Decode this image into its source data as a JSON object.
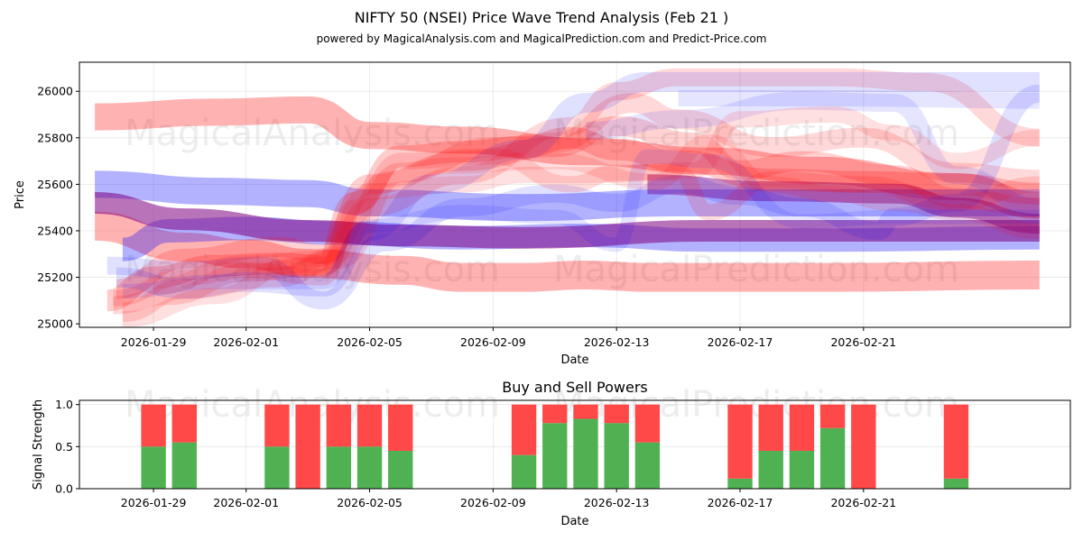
{
  "chart_data": [
    {
      "type": "line",
      "title": "NIFTY 50 (NSEI) Price Wave Trend Analysis (Feb 21 )",
      "subtitle": "powered by MagicalAnalysis.com and MagicalPrediction.com and Predict-Price.com",
      "xlabel": "Date",
      "ylabel": "Price",
      "xticks": [
        "2026-01-29",
        "2026-02-01",
        "2026-02-05",
        "2026-02-09",
        "2026-02-13",
        "2026-02-17",
        "2026-02-21"
      ],
      "yticks": [
        25000,
        25200,
        25400,
        25600,
        25800,
        26000
      ],
      "ylim": [
        24985,
        26125
      ],
      "xlim_days": [
        -2.4,
        29.7
      ],
      "watermarks": [
        "MagicalAnalysis.com",
        "MagicalPrediction.com",
        "MagicalAnalysis.com",
        "MagicalPrediction.com"
      ],
      "grid": true,
      "bands": [
        {
          "color": "#ff0000",
          "alpha": 0.3,
          "width": 30,
          "points": [
            [
              -1.9,
              25890
            ],
            [
              2,
              25910
            ],
            [
              5,
              25920
            ],
            [
              7,
              25810
            ],
            [
              10,
              25790
            ],
            [
              14,
              25740
            ],
            [
              18,
              25700
            ],
            [
              21.5,
              25660
            ],
            [
              26,
              25590
            ],
            [
              28.7,
              25510
            ]
          ]
        },
        {
          "color": "#ff0000",
          "alpha": 0.3,
          "width": 32,
          "points": [
            [
              -1.9,
              25420
            ],
            [
              1,
              25330
            ],
            [
              3,
              25300
            ],
            [
              5,
              25260
            ],
            [
              8,
              25230
            ],
            [
              10,
              25200
            ],
            [
              12,
              25200
            ],
            [
              14,
              25210
            ],
            [
              16,
              25200
            ],
            [
              18,
              25200
            ],
            [
              20,
              25200
            ],
            [
              22,
              25200
            ],
            [
              28.7,
              25210
            ]
          ]
        },
        {
          "color": "#0000ff",
          "alpha": 0.3,
          "width": 30,
          "points": [
            [
              -1.9,
              25600
            ],
            [
              2,
              25570
            ],
            [
              5,
              25560
            ],
            [
              7,
              25520
            ],
            [
              12,
              25500
            ],
            [
              17,
              25520
            ],
            [
              22,
              25520
            ],
            [
              28.7,
              25520
            ]
          ]
        },
        {
          "color": "#0000ff",
          "alpha": 0.3,
          "width": 26,
          "points": [
            [
              -1,
              25320
            ],
            [
              0.5,
              25400
            ],
            [
              3,
              25410
            ],
            [
              6,
              25390
            ],
            [
              10,
              25370
            ],
            [
              14,
              25380
            ],
            [
              18,
              25360
            ],
            [
              22,
              25360
            ],
            [
              28.7,
              25370
            ]
          ]
        },
        {
          "color": "#800080",
          "alpha": 0.55,
          "width": 24,
          "points": [
            [
              -1.9,
              25520
            ],
            [
              1,
              25450
            ],
            [
              5,
              25400
            ],
            [
              8,
              25380
            ],
            [
              12,
              25370
            ],
            [
              18,
              25400
            ],
            [
              24,
              25400
            ],
            [
              28.7,
              25400
            ]
          ]
        },
        {
          "color": "#800080",
          "alpha": 0.45,
          "width": 22,
          "points": [
            [
              16,
              25600
            ],
            [
              20,
              25570
            ],
            [
              24,
              25560
            ],
            [
              26,
              25500
            ],
            [
              28.7,
              25430
            ]
          ]
        },
        {
          "color": "#ff0000",
          "alpha": 0.2,
          "width": 24,
          "points": [
            [
              -1.5,
              25100
            ],
            [
              0,
              25200
            ],
            [
              2,
              25250
            ],
            [
              4,
              25260
            ],
            [
              5.5,
              25250
            ],
            [
              6.5,
              25520
            ],
            [
              8,
              25720
            ],
            [
              10,
              25740
            ],
            [
              12,
              25760
            ],
            [
              13.5,
              25800
            ],
            [
              15,
              25750
            ],
            [
              17,
              25700
            ],
            [
              20,
              25620
            ],
            [
              23,
              25610
            ],
            [
              26,
              25600
            ],
            [
              28.7,
              25560
            ]
          ]
        },
        {
          "color": "#ff0000",
          "alpha": 0.18,
          "width": 22,
          "points": [
            [
              -1.2,
              25150
            ],
            [
              1,
              25280
            ],
            [
              4,
              25330
            ],
            [
              5.5,
              25300
            ],
            [
              7,
              25600
            ],
            [
              10,
              25700
            ],
            [
              13,
              25760
            ],
            [
              15,
              25850
            ],
            [
              17.5,
              25780
            ],
            [
              19,
              25660
            ],
            [
              21,
              25700
            ],
            [
              24,
              25640
            ],
            [
              26,
              25540
            ],
            [
              28.7,
              25500
            ]
          ]
        },
        {
          "color": "#ff0000",
          "alpha": 0.15,
          "width": 22,
          "points": [
            [
              -1,
              25050
            ],
            [
              1,
              25150
            ],
            [
              4,
              25200
            ],
            [
              6,
              25280
            ],
            [
              8,
              25650
            ],
            [
              11,
              25760
            ],
            [
              13,
              25780
            ],
            [
              15.5,
              25950
            ],
            [
              17,
              25880
            ],
            [
              20,
              25760
            ],
            [
              23,
              25800
            ],
            [
              26,
              25650
            ],
            [
              28.7,
              25620
            ]
          ]
        },
        {
          "color": "#ff0000",
          "alpha": 0.15,
          "width": 20,
          "points": [
            [
              -1.3,
              25080
            ],
            [
              0.5,
              25120
            ],
            [
              3,
              25220
            ],
            [
              5.5,
              25250
            ],
            [
              7,
              25500
            ],
            [
              10,
              25640
            ],
            [
              13.5,
              25850
            ],
            [
              15,
              26000
            ],
            [
              17,
              26060
            ],
            [
              22,
              26060
            ],
            [
              25,
              26040
            ],
            [
              28.7,
              25800
            ]
          ]
        },
        {
          "color": "#0000ff",
          "alpha": 0.12,
          "width": 22,
          "points": [
            [
              -1.2,
              25200
            ],
            [
              1,
              25150
            ],
            [
              3,
              25180
            ],
            [
              5.5,
              25160
            ],
            [
              7,
              25400
            ],
            [
              9,
              25600
            ],
            [
              12,
              25750
            ],
            [
              14,
              25950
            ],
            [
              16,
              26040
            ],
            [
              20,
              26040
            ],
            [
              28.7,
              26040
            ]
          ]
        },
        {
          "color": "#0000ff",
          "alpha": 0.12,
          "width": 20,
          "points": [
            [
              -1.5,
              25250
            ],
            [
              1,
              25230
            ],
            [
              3.5,
              25250
            ],
            [
              5.5,
              25100
            ],
            [
              7.5,
              25350
            ],
            [
              10,
              25500
            ],
            [
              13,
              25560
            ],
            [
              15,
              25520
            ],
            [
              17,
              25600
            ],
            [
              19,
              25550
            ],
            [
              21,
              25500
            ],
            [
              23.5,
              25400
            ],
            [
              24,
              25460
            ],
            [
              26,
              25520
            ],
            [
              28.7,
              25990
            ]
          ]
        },
        {
          "color": "#0000ff",
          "alpha": 0.1,
          "width": 20,
          "points": [
            [
              14,
              25830
            ],
            [
              17,
              25880
            ],
            [
              21,
              25960
            ],
            [
              24,
              25950
            ],
            [
              26,
              25640
            ],
            [
              28.7,
              25500
            ]
          ]
        },
        {
          "color": "#0000ff",
          "alpha": 0.1,
          "width": 18,
          "points": [
            [
              17,
              25970
            ],
            [
              22,
              25970
            ],
            [
              28.7,
              25960
            ]
          ]
        },
        {
          "color": "#ff0000",
          "alpha": 0.14,
          "width": 18,
          "points": [
            [
              -1.3,
              25110
            ],
            [
              1,
              25200
            ],
            [
              3,
              25230
            ],
            [
              5.5,
              25200
            ],
            [
              6.5,
              25500
            ],
            [
              8,
              25700
            ],
            [
              11,
              25720
            ],
            [
              13.5,
              25600
            ],
            [
              15,
              25650
            ],
            [
              17,
              25650
            ],
            [
              18,
              25480
            ],
            [
              20,
              25620
            ],
            [
              23,
              25600
            ],
            [
              26,
              25520
            ],
            [
              28.7,
              25600
            ]
          ]
        },
        {
          "color": "#ff0000",
          "alpha": 0.12,
          "width": 18,
          "points": [
            [
              -1,
              25020
            ],
            [
              2,
              25120
            ],
            [
              4.5,
              25250
            ],
            [
              6,
              25300
            ],
            [
              7.5,
              25620
            ],
            [
              9.5,
              25680
            ],
            [
              13,
              25700
            ],
            [
              16.2,
              25610
            ],
            [
              18,
              25780
            ],
            [
              20,
              25600
            ],
            [
              22,
              25560
            ],
            [
              24,
              25520
            ],
            [
              26,
              25480
            ],
            [
              28.7,
              25400
            ]
          ]
        },
        {
          "color": "#ff0000",
          "alpha": 0.12,
          "width": 18,
          "points": [
            [
              0,
              25160
            ],
            [
              3,
              25260
            ],
            [
              5.5,
              25280
            ],
            [
              7,
              25570
            ],
            [
              10,
              25600
            ],
            [
              12,
              25640
            ],
            [
              14,
              25640
            ],
            [
              17.5,
              25660
            ],
            [
              19,
              25880
            ],
            [
              22,
              25900
            ],
            [
              24,
              25820
            ],
            [
              26,
              25700
            ],
            [
              28.7,
              25800
            ]
          ]
        },
        {
          "color": "#0000ff",
          "alpha": 0.1,
          "width": 16,
          "points": [
            [
              -1,
              25140
            ],
            [
              2,
              25180
            ],
            [
              5.5,
              25180
            ],
            [
              7,
              25420
            ],
            [
              10,
              25480
            ],
            [
              13,
              25460
            ],
            [
              15,
              25340
            ],
            [
              16,
              25720
            ],
            [
              18,
              25700
            ],
            [
              21,
              25440
            ],
            [
              24,
              25460
            ],
            [
              28.7,
              25460
            ]
          ]
        }
      ]
    },
    {
      "type": "bar",
      "title": "Buy and Sell Powers",
      "xlabel": "Date",
      "ylabel": "Signal Strength",
      "xticks": [
        "2026-01-29",
        "2026-02-01",
        "2026-02-05",
        "2026-02-09",
        "2026-02-13",
        "2026-02-17",
        "2026-02-21"
      ],
      "yticks": [
        "0.0",
        "0.5",
        "1.0"
      ],
      "ylim": [
        0,
        1.05
      ],
      "xlim_days": [
        -2.4,
        29.7
      ],
      "grid": true,
      "series": [
        {
          "name": "Buy",
          "color": "#4caf50"
        },
        {
          "name": "Sell",
          "color": "#ff4444"
        }
      ],
      "days": [
        0,
        1,
        4,
        5,
        6,
        7,
        8,
        12,
        13,
        14,
        15,
        16,
        19,
        20,
        21,
        22,
        23,
        26
      ],
      "buy": [
        0.5,
        0.55,
        0.5,
        0.0,
        0.5,
        0.5,
        0.45,
        0.4,
        0.78,
        0.83,
        0.78,
        0.55,
        0.12,
        0.45,
        0.45,
        0.72,
        0.0,
        0.12
      ]
    }
  ]
}
